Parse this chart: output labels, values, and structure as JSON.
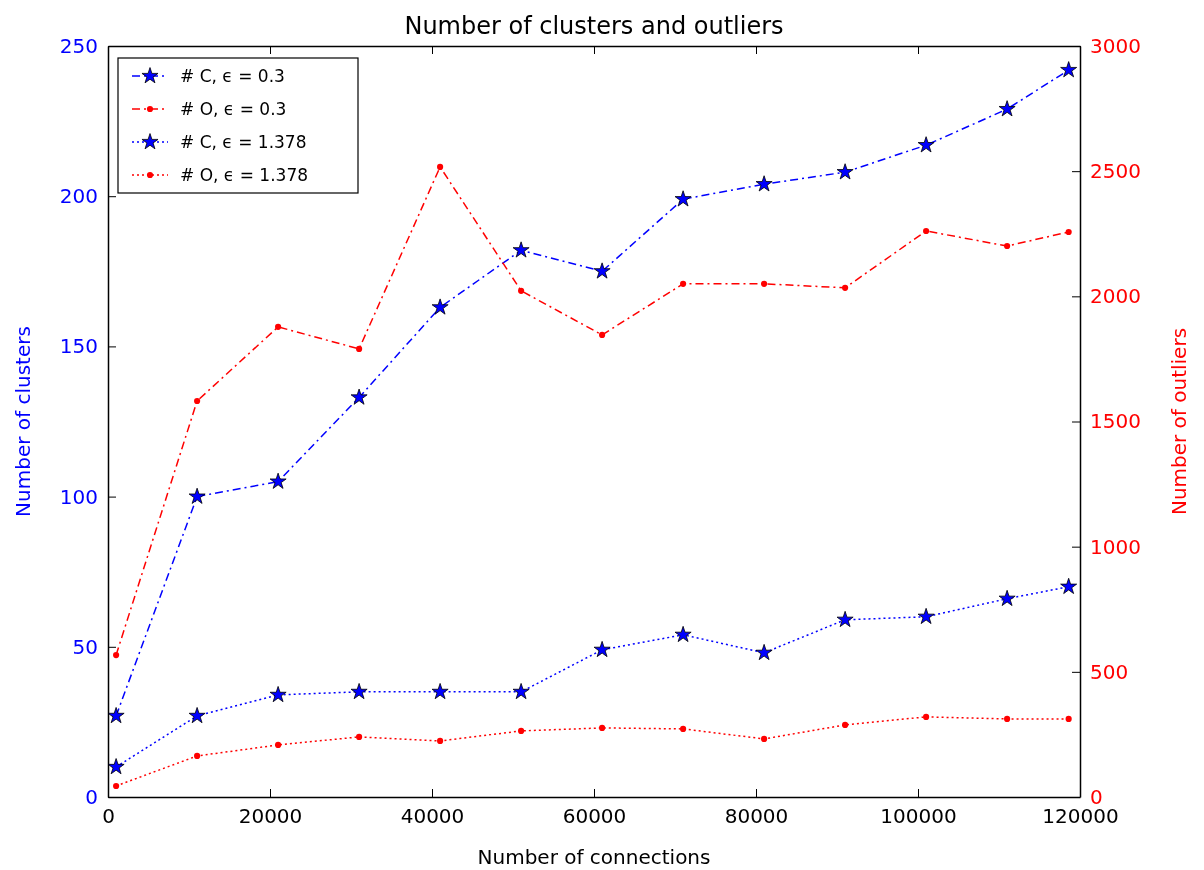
{
  "chart_data": {
    "type": "line",
    "title": "Number of clusters and outliers",
    "xlabel": "Number of connections",
    "ylabel": "Number of clusters",
    "y2label": "Number of outliers",
    "x": [
      1000,
      11000,
      21000,
      31000,
      41000,
      51000,
      61000,
      71000,
      81000,
      91000,
      101000,
      111000,
      118600
    ],
    "xlim": [
      0,
      120000
    ],
    "xticks": [
      0,
      20000,
      40000,
      60000,
      80000,
      100000,
      120000
    ],
    "ylim": [
      0,
      250
    ],
    "yticks": [
      0,
      50,
      100,
      150,
      200,
      250
    ],
    "y2lim": [
      0,
      3000
    ],
    "y2ticks": [
      0,
      500,
      1000,
      1500,
      2000,
      2500,
      3000
    ],
    "grid": false,
    "legend": "top left",
    "series": [
      {
        "name": "# C, ϵ = 0.3",
        "color": "#0000ff",
        "marker": "star",
        "line_style": "dashed",
        "values": [
          27,
          100,
          105,
          133,
          163,
          182,
          175,
          199,
          204,
          208,
          217,
          229,
          242
        ]
      },
      {
        "name": "# O, ϵ = 0.3",
        "color": "#ff0000",
        "marker": "circle",
        "line_style": "dashed",
        "axis": "y2",
        "values": [
          567,
          1582,
          1878,
          1790,
          2517,
          2022,
          1846,
          2050,
          2050,
          2034,
          2261,
          2201,
          2257
        ]
      },
      {
        "name": "# C, ϵ = 1.378",
        "color": "#0000ff",
        "marker": "star",
        "line_style": "dotted",
        "values": [
          10,
          27,
          34,
          35,
          35,
          35,
          49,
          54,
          48,
          59,
          60,
          66,
          70
        ]
      },
      {
        "name": "# O, ϵ = 1.378",
        "color": "#ff0000",
        "marker": "circle",
        "line_style": "dotted",
        "axis": "y2",
        "values": [
          44,
          164,
          208,
          240,
          224,
          264,
          276,
          272,
          232,
          288,
          320,
          312,
          312
        ]
      }
    ]
  }
}
